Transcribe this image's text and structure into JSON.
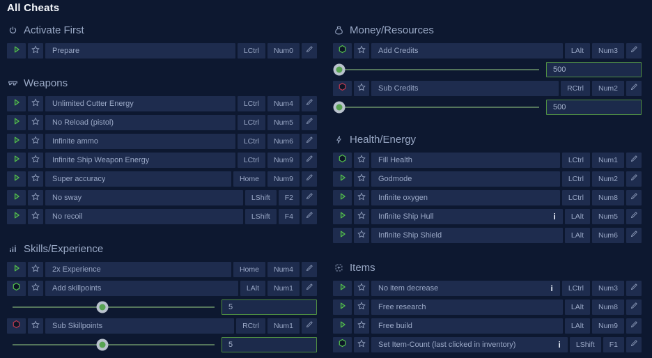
{
  "title": "All Cheats",
  "info_glyph": "i",
  "colors": {
    "background": "#0d1830",
    "row": "#1e2c4e",
    "accent_green": "#54c14c",
    "accent_red": "#bb3a50",
    "value_border_green": "#4f8f43",
    "text": "#9aa8c6"
  },
  "columns": [
    {
      "sections": [
        {
          "icon": "power-icon",
          "label": "Activate First",
          "rows": [
            {
              "name": "Prepare",
              "action": "play",
              "keys": [
                "LCtrl",
                "Num0"
              ]
            }
          ]
        },
        {
          "icon": "gun-icon",
          "label": "Weapons",
          "rows": [
            {
              "name": "Unlimited Cutter Energy",
              "action": "play",
              "keys": [
                "LCtrl",
                "Num4"
              ]
            },
            {
              "name": "No Reload (pistol)",
              "action": "play",
              "keys": [
                "LCtrl",
                "Num5"
              ]
            },
            {
              "name": "Infinite ammo",
              "action": "play",
              "keys": [
                "LCtrl",
                "Num6"
              ]
            },
            {
              "name": "Infinite Ship Weapon Energy",
              "action": "play",
              "keys": [
                "LCtrl",
                "Num9"
              ]
            },
            {
              "name": "Super accuracy",
              "action": "play",
              "keys": [
                "Home",
                "Num9"
              ]
            },
            {
              "name": "No sway",
              "action": "play",
              "keys": [
                "LShift",
                "F2"
              ]
            },
            {
              "name": "No recoil",
              "action": "play",
              "keys": [
                "LShift",
                "F4"
              ]
            }
          ]
        },
        {
          "icon": "chart-icon",
          "label": "Skills/Experience",
          "rows": [
            {
              "name": "2x Experience",
              "action": "play",
              "keys": [
                "Home",
                "Num4"
              ]
            },
            {
              "name": "Add skillpoints",
              "action": "hex-green",
              "keys": [
                "LAlt",
                "Num1"
              ],
              "slider": {
                "value": "5",
                "position": 0.445
              }
            },
            {
              "name": "Sub Skillpoints",
              "action": "hex-red",
              "keys": [
                "RCtrl",
                "Num1"
              ],
              "slider": {
                "value": "5",
                "position": 0.445
              }
            }
          ]
        }
      ]
    },
    {
      "sections": [
        {
          "icon": "moneybag-icon",
          "label": "Money/Resources",
          "rows": [
            {
              "name": "Add Credits",
              "action": "hex-green",
              "keys": [
                "LAlt",
                "Num3"
              ],
              "slider": {
                "value": "500",
                "position": 0.005
              }
            },
            {
              "name": "Sub Credits",
              "action": "hex-red",
              "keys": [
                "RCtrl",
                "Num2"
              ],
              "slider": {
                "value": "500",
                "position": 0.005
              }
            }
          ]
        },
        {
          "icon": "lightning-icon",
          "label": "Health/Energy",
          "rows": [
            {
              "name": "Fill Health",
              "action": "hex-green",
              "keys": [
                "LCtrl",
                "Num1"
              ]
            },
            {
              "name": "Godmode",
              "action": "play",
              "keys": [
                "LCtrl",
                "Num2"
              ]
            },
            {
              "name": "Infinite oxygen",
              "action": "play",
              "keys": [
                "LCtrl",
                "Num8"
              ]
            },
            {
              "name": "Infinite Ship Hull",
              "action": "play",
              "info": true,
              "keys": [
                "LAlt",
                "Num5"
              ]
            },
            {
              "name": "Infinite Ship Shield",
              "action": "play",
              "keys": [
                "LAlt",
                "Num6"
              ]
            }
          ]
        },
        {
          "icon": "box-plus-icon",
          "label": "Items",
          "rows": [
            {
              "name": "No item decrease",
              "action": "play",
              "info": true,
              "keys": [
                "LCtrl",
                "Num3"
              ]
            },
            {
              "name": "Free research",
              "action": "play",
              "keys": [
                "LAlt",
                "Num8"
              ]
            },
            {
              "name": "Free build",
              "action": "play",
              "keys": [
                "LAlt",
                "Num9"
              ]
            },
            {
              "name": "Set Item-Count (last clicked in inventory)",
              "action": "hex-green",
              "info": true,
              "keys": [
                "LShift",
                "F1"
              ]
            }
          ]
        }
      ]
    }
  ]
}
